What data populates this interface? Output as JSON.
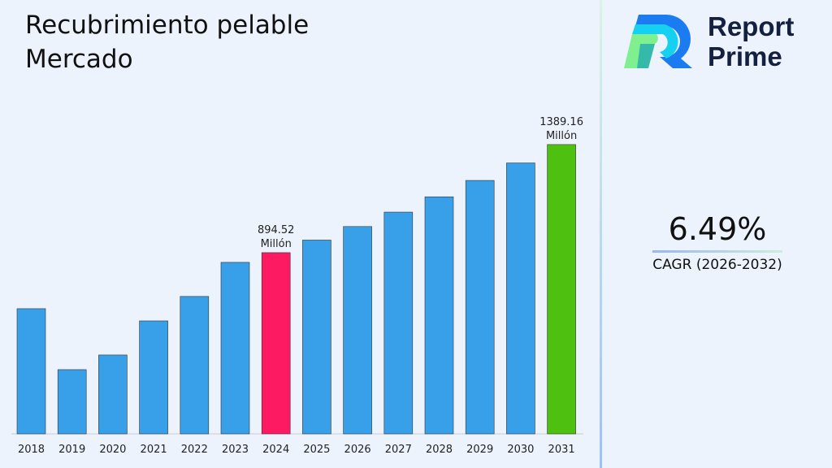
{
  "title": "Recubrimiento pelable Mercado",
  "logo": {
    "line1": "Report",
    "line2": "Prime"
  },
  "cagr": {
    "value": "6.49%",
    "label": "CAGR (2026-2032)"
  },
  "chart_data": {
    "type": "bar",
    "categories": [
      "2018",
      "2019",
      "2020",
      "2021",
      "2022",
      "2023",
      "2024",
      "2025",
      "2026",
      "2027",
      "2028",
      "2029",
      "2030",
      "2031"
    ],
    "values": [
      638,
      359,
      426,
      582,
      694,
      850,
      894.52,
      952,
      1014,
      1080,
      1150,
      1225,
      1305,
      1389.16
    ],
    "ylim": [
      65,
      1400
    ],
    "colors": {
      "default": "#38a0e8",
      "highlight_2024": "#fe1a63",
      "highlight_2031": "#4ec00f"
    },
    "annotations": [
      {
        "category": "2024",
        "value": "894.52",
        "unit": "Millón"
      },
      {
        "category": "2031",
        "value": "1389.16",
        "unit": "Millón"
      }
    ],
    "grid": false
  }
}
